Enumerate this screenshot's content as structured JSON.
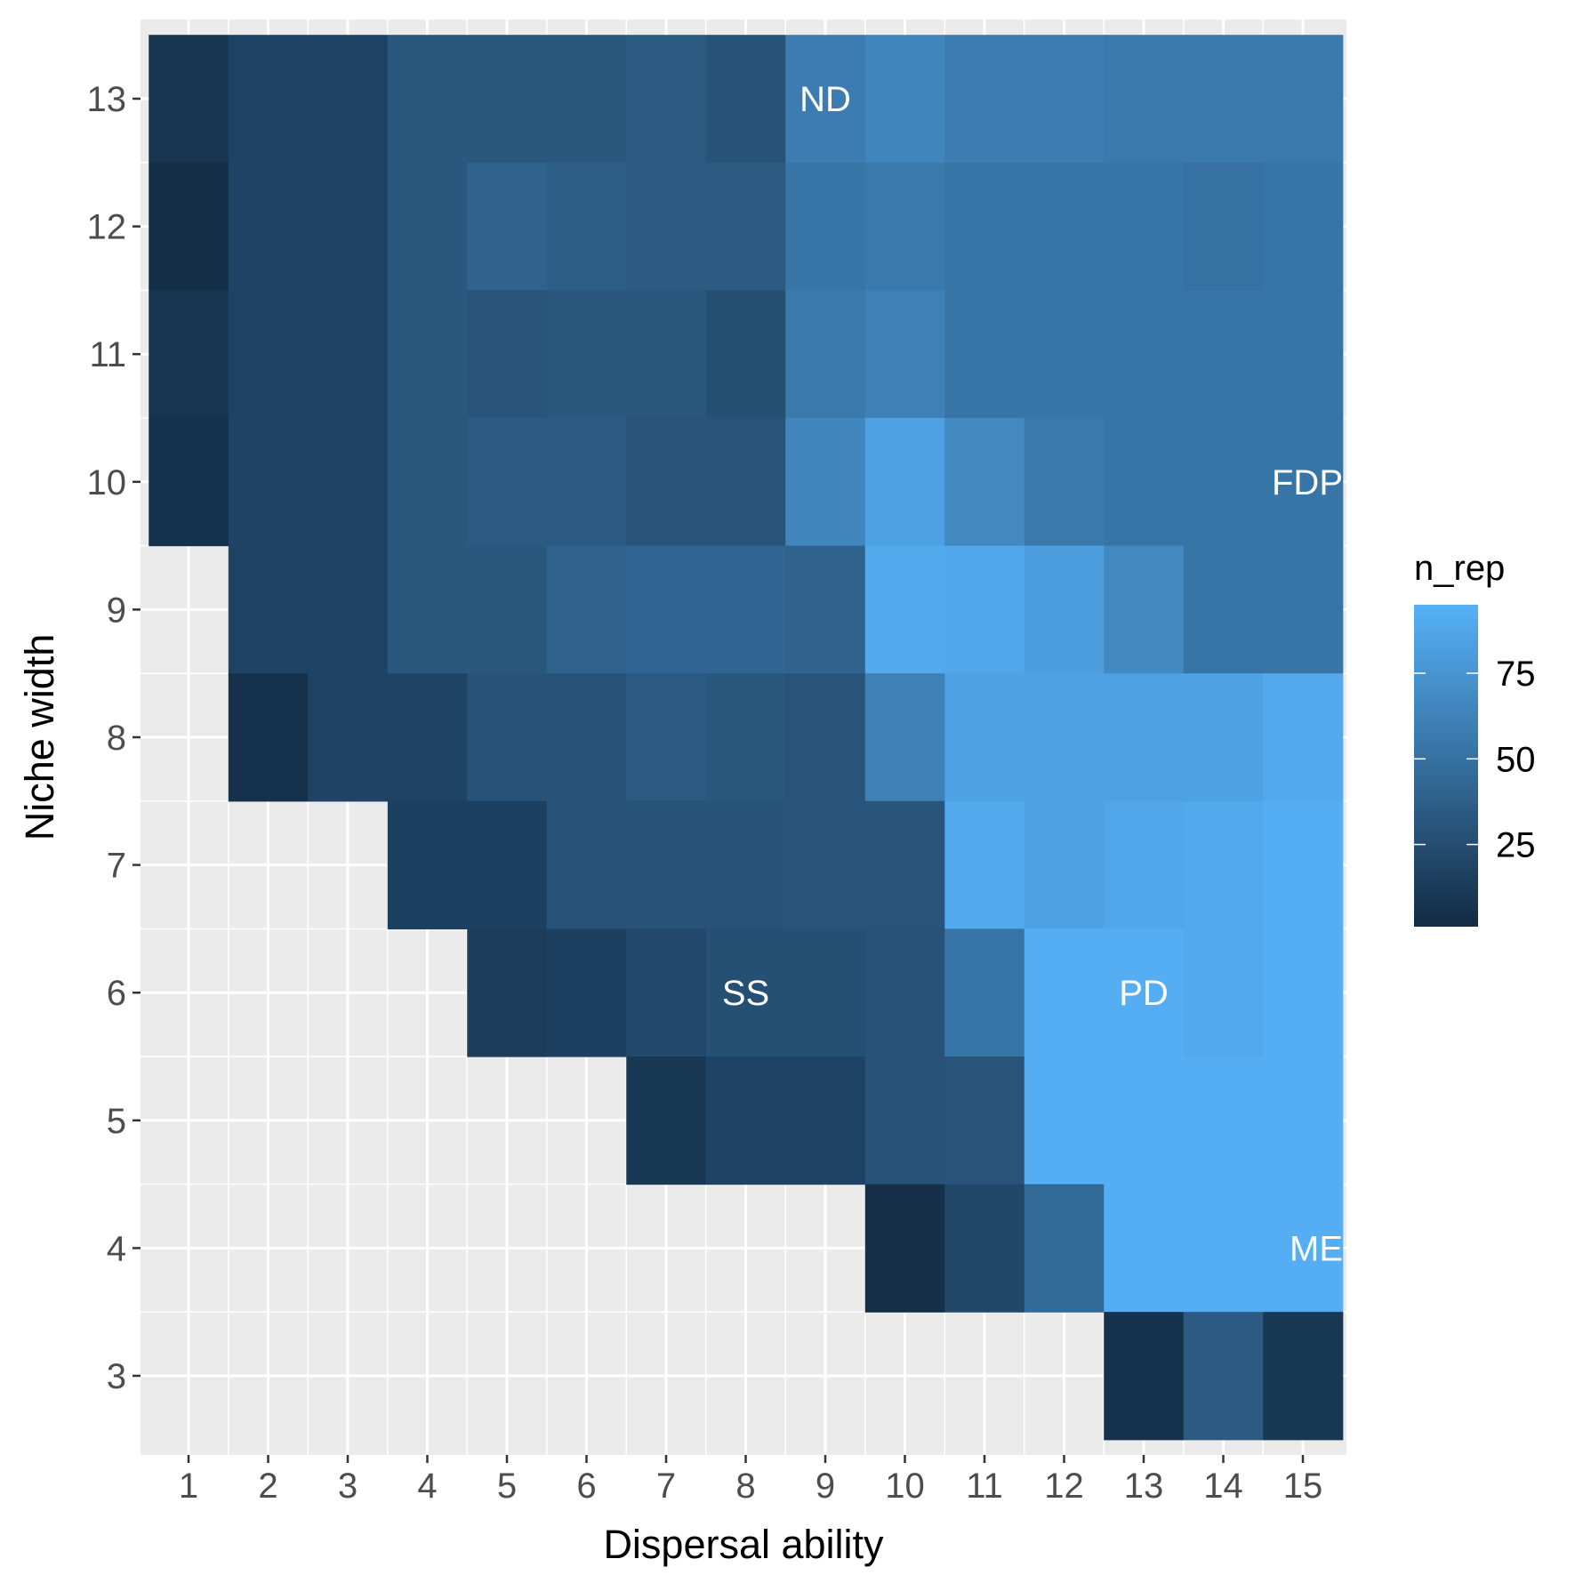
{
  "chart_data": {
    "type": "heatmap",
    "xlabel": "Dispersal ability",
    "ylabel": "Niche width",
    "x": [
      1,
      2,
      3,
      4,
      5,
      6,
      7,
      8,
      9,
      10,
      11,
      12,
      13,
      14,
      15
    ],
    "y": [
      3,
      4,
      5,
      6,
      7,
      8,
      9,
      10,
      11,
      12,
      13
    ],
    "x_tick_labels": [
      "1",
      "2",
      "3",
      "4",
      "5",
      "6",
      "7",
      "8",
      "9",
      "10",
      "11",
      "12",
      "13",
      "14",
      "15"
    ],
    "y_tick_labels": [
      "3",
      "4",
      "5",
      "6",
      "7",
      "8",
      "9",
      "10",
      "11",
      "12",
      "13"
    ],
    "grid": true,
    "colors": {
      "panel_background": "#ebebeb",
      "grid_line": "#ffffff",
      "low": "#132b43",
      "high": "#56b1f7"
    },
    "legend": {
      "title": "n_rep",
      "position": "right",
      "min": 1,
      "max": 95,
      "breaks": [
        25,
        50,
        75
      ],
      "break_labels": [
        "25",
        "50",
        "75"
      ]
    },
    "rows": [
      {
        "niche_width": 13,
        "dispersal_from": 1,
        "values": [
          8,
          18,
          18,
          32,
          32,
          32,
          34,
          29,
          58,
          64,
          58,
          58,
          56,
          56,
          56
        ]
      },
      {
        "niche_width": 12,
        "dispersal_from": 1,
        "values": [
          3,
          18,
          18,
          32,
          40,
          37,
          34,
          34,
          53,
          56,
          53,
          53,
          53,
          50,
          53
        ]
      },
      {
        "niche_width": 11,
        "dispersal_from": 1,
        "values": [
          8,
          18,
          18,
          32,
          30,
          32,
          32,
          26,
          56,
          61,
          53,
          53,
          53,
          53,
          53
        ]
      },
      {
        "niche_width": 10,
        "dispersal_from": 1,
        "values": [
          5,
          18,
          18,
          32,
          34,
          34,
          30,
          30,
          64,
          84,
          67,
          56,
          53,
          53,
          53
        ]
      },
      {
        "niche_width": 9,
        "dispersal_from": 2,
        "values": [
          18,
          18,
          32,
          32,
          40,
          42,
          42,
          40,
          90,
          88,
          82,
          67,
          53,
          53
        ]
      },
      {
        "niche_width": 8,
        "dispersal_from": 2,
        "values": [
          5,
          18,
          18,
          29,
          29,
          34,
          32,
          30,
          61,
          84,
          84,
          84,
          84,
          90
        ]
      },
      {
        "niche_width": 7,
        "dispersal_from": 4,
        "values": [
          16,
          16,
          29,
          29,
          29,
          30,
          30,
          90,
          84,
          88,
          90,
          93
        ]
      },
      {
        "niche_width": 6,
        "dispersal_from": 5,
        "values": [
          13,
          16,
          22,
          26,
          26,
          29,
          53,
          93,
          93,
          90,
          93
        ]
      },
      {
        "niche_width": 5,
        "dispersal_from": 7,
        "values": [
          10,
          18,
          18,
          29,
          30,
          93,
          93,
          93,
          93
        ]
      },
      {
        "niche_width": 4,
        "dispersal_from": 10,
        "values": [
          4,
          21,
          45,
          93,
          93,
          93
        ]
      },
      {
        "niche_width": 3,
        "dispersal_from": 13,
        "values": [
          5,
          34,
          10
        ]
      }
    ],
    "annotations": [
      {
        "text": "ND",
        "x": 9,
        "y": 13
      },
      {
        "text": "FDP",
        "x": 15,
        "y": 10
      },
      {
        "text": "SS",
        "x": 8,
        "y": 6
      },
      {
        "text": "PD",
        "x": 13,
        "y": 6
      },
      {
        "text": "ME",
        "x": 15,
        "y": 4
      }
    ]
  }
}
